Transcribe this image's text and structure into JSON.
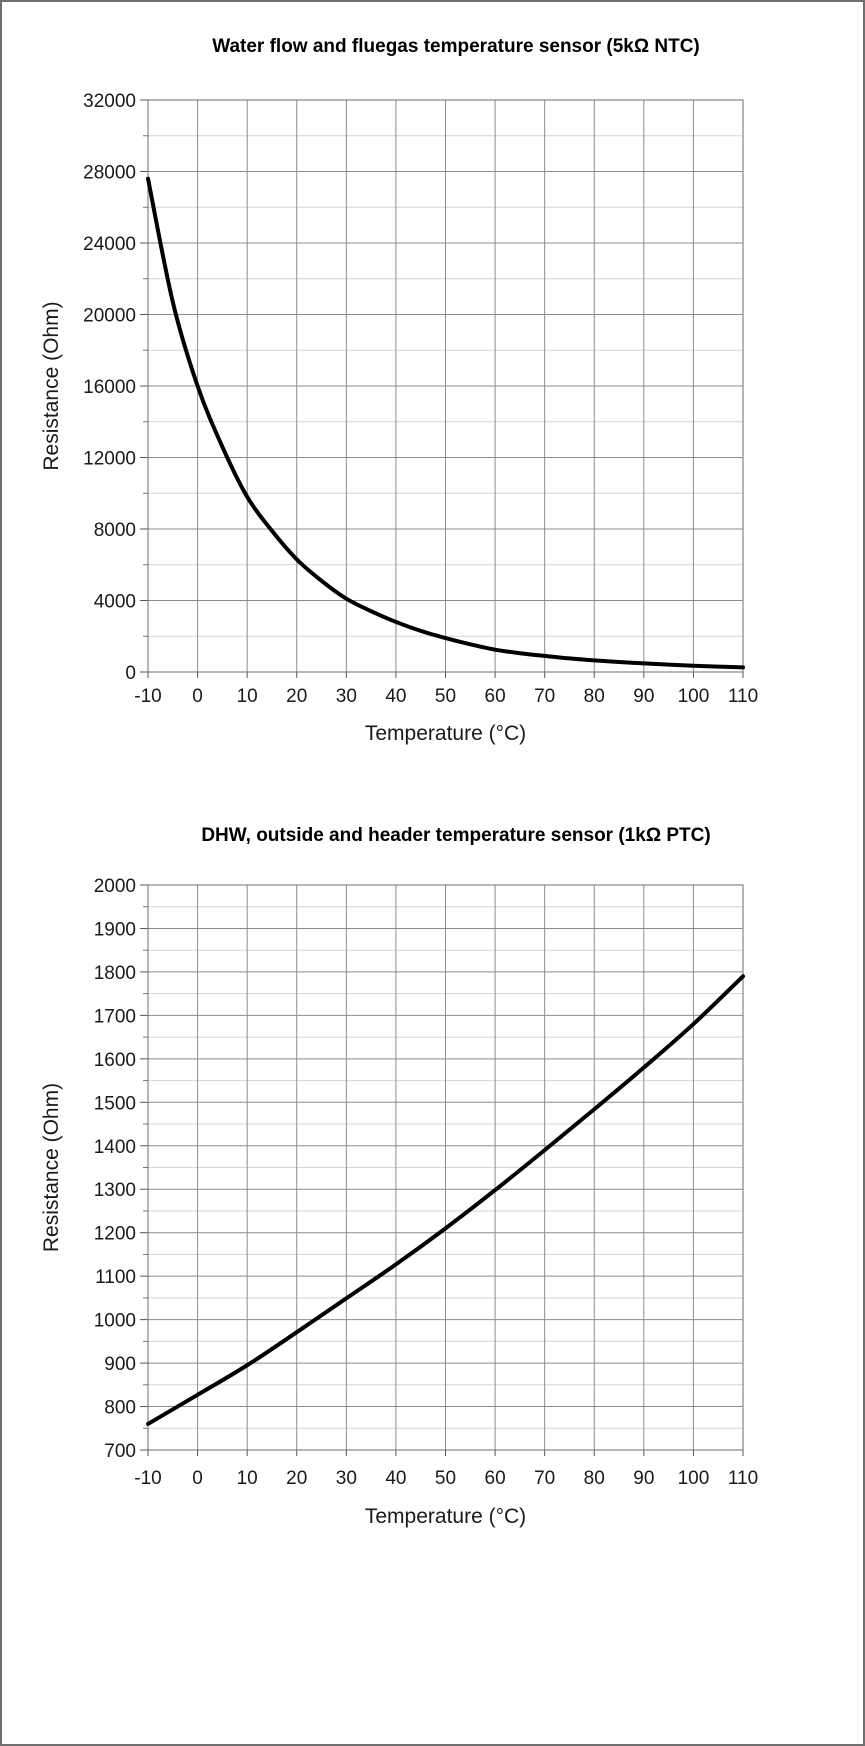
{
  "chart_data": [
    {
      "type": "line",
      "title": "Water flow and fluegas temperature sensor (5kΩ NTC)",
      "xlabel": "Temperature (°C)",
      "ylabel": "Resistance (Ohm)",
      "xlim": [
        -10,
        110
      ],
      "ylim": [
        0,
        32000
      ],
      "x_ticks": [
        "-10",
        "0",
        "10",
        "20",
        "30",
        "40",
        "50",
        "60",
        "70",
        "80",
        "90",
        "100",
        "110"
      ],
      "y_ticks": [
        "0",
        "4000",
        "8000",
        "12000",
        "16000",
        "20000",
        "24000",
        "28000",
        "32000"
      ],
      "grid": true,
      "series": [
        {
          "color": "#000000",
          "x": [
            -10,
            -5,
            0,
            5,
            10,
            15,
            20,
            25,
            30,
            35,
            40,
            45,
            50,
            55,
            60,
            65,
            70,
            75,
            80,
            85,
            90,
            95,
            100,
            105,
            110
          ],
          "y": [
            27600,
            20700,
            16000,
            12600,
            9800,
            7900,
            6300,
            5100,
            4100,
            3400,
            2800,
            2300,
            1900,
            1550,
            1250,
            1050,
            900,
            760,
            650,
            560,
            480,
            410,
            350,
            300,
            260
          ]
        }
      ]
    },
    {
      "type": "line",
      "title": "DHW, outside and header temperature sensor (1kΩ PTC)",
      "xlabel": "Temperature (°C)",
      "ylabel": "Resistance (Ohm)",
      "xlim": [
        -10,
        110
      ],
      "ylim": [
        700,
        2000
      ],
      "x_ticks": [
        "-10",
        "0",
        "10",
        "20",
        "30",
        "40",
        "50",
        "60",
        "70",
        "80",
        "90",
        "100",
        "110"
      ],
      "y_ticks": [
        "700",
        "800",
        "900",
        "1000",
        "1100",
        "1200",
        "1300",
        "1400",
        "1500",
        "1600",
        "1700",
        "1800",
        "1900",
        "2000"
      ],
      "grid": true,
      "series": [
        {
          "color": "#000000",
          "x": [
            -10,
            0,
            10,
            20,
            30,
            40,
            50,
            60,
            70,
            80,
            90,
            100,
            110
          ],
          "y": [
            760,
            827,
            895,
            971,
            1049,
            1127,
            1210,
            1298,
            1390,
            1484,
            1580,
            1680,
            1790
          ]
        }
      ]
    }
  ]
}
